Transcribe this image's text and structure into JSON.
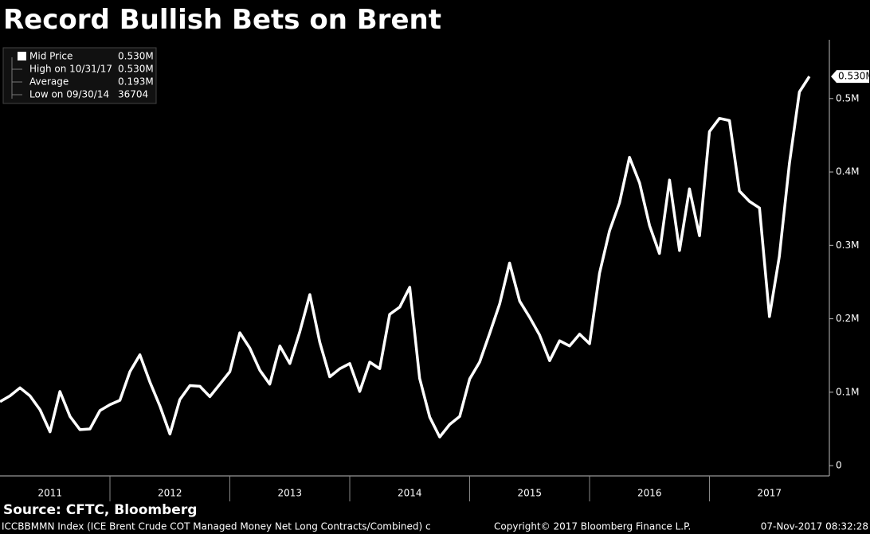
{
  "chart_data": {
    "type": "line",
    "title": "Record Bullish Bets on Brent",
    "source": "Source: CFTC, Bloomberg",
    "footer_left": "ICCBBMMN Index (ICE Brent Crude COT Managed Money Net Long Contracts/Combined) c",
    "footer_center": "Copyright© 2017 Bloomberg Finance L.P.",
    "footer_right": "07-Nov-2017 08:32:28",
    "x": [
      2011.083,
      2011.167,
      2011.25,
      2011.333,
      2011.417,
      2011.5,
      2011.583,
      2011.667,
      2011.75,
      2011.833,
      2011.917,
      2012,
      2012.083,
      2012.167,
      2012.25,
      2012.333,
      2012.417,
      2012.5,
      2012.583,
      2012.667,
      2012.75,
      2012.833,
      2012.917,
      2013,
      2013.083,
      2013.167,
      2013.25,
      2013.333,
      2013.417,
      2013.5,
      2013.583,
      2013.667,
      2013.75,
      2013.833,
      2013.917,
      2014,
      2014.083,
      2014.167,
      2014.25,
      2014.333,
      2014.417,
      2014.5,
      2014.583,
      2014.667,
      2014.75,
      2014.833,
      2014.917,
      2015,
      2015.083,
      2015.167,
      2015.25,
      2015.333,
      2015.417,
      2015.5,
      2015.583,
      2015.667,
      2015.75,
      2015.833,
      2015.917,
      2016,
      2016.083,
      2016.167,
      2016.25,
      2016.333,
      2016.417,
      2016.5,
      2016.583,
      2016.667,
      2016.75,
      2016.833,
      2016.917,
      2017,
      2017.083,
      2017.167,
      2017.25,
      2017.333,
      2017.417,
      2017.5,
      2017.583,
      2017.667,
      2017.75,
      2017.833
    ],
    "series": [
      {
        "name": "Mid Price",
        "color": "#ffffff",
        "values": [
          0.087,
          0.095,
          0.106,
          0.095,
          0.076,
          0.046,
          0.101,
          0.067,
          0.049,
          0.05,
          0.075,
          0.083,
          0.089,
          0.128,
          0.151,
          0.114,
          0.081,
          0.043,
          0.09,
          0.109,
          0.108,
          0.094,
          0.111,
          0.128,
          0.181,
          0.16,
          0.13,
          0.111,
          0.163,
          0.139,
          0.182,
          0.233,
          0.168,
          0.121,
          0.132,
          0.139,
          0.101,
          0.141,
          0.132,
          0.206,
          0.216,
          0.243,
          0.119,
          0.066,
          0.039,
          0.056,
          0.067,
          0.118,
          0.141,
          0.18,
          0.22,
          0.276,
          0.224,
          0.202,
          0.178,
          0.143,
          0.17,
          0.163,
          0.179,
          0.166,
          0.262,
          0.32,
          0.358,
          0.42,
          0.385,
          0.327,
          0.289,
          0.389,
          0.293,
          0.377,
          0.313,
          0.455,
          0.473,
          0.47,
          0.374,
          0.36,
          0.351,
          0.203,
          0.285,
          0.412,
          0.509,
          0.53
        ]
      }
    ],
    "last_label": "0.530M",
    "legend_value": "0.530M",
    "stats": [
      {
        "name": "High on 10/31/17",
        "value": "0.530M"
      },
      {
        "name": "Average",
        "value": "0.193M"
      },
      {
        "name": "Low on 09/30/14",
        "value": "36704"
      }
    ],
    "xlim": [
      2011.083,
      2018
    ],
    "xticks": [
      {
        "value": 2011.5,
        "label": "2011"
      },
      {
        "value": 2012.5,
        "label": "2012"
      },
      {
        "value": 2013.5,
        "label": "2013"
      },
      {
        "value": 2014.5,
        "label": "2014"
      },
      {
        "value": 2015.5,
        "label": "2015"
      },
      {
        "value": 2016.5,
        "label": "2016"
      },
      {
        "value": 2017.5,
        "label": "2017"
      }
    ],
    "ylim": [
      -0.014,
      0.58
    ],
    "yticks": [
      0,
      {
        "value": 0.1,
        "label": "0.1M"
      },
      {
        "value": 0.2,
        "label": "0.2M"
      },
      {
        "value": 0.3,
        "label": "0.3M"
      },
      {
        "value": 0.4,
        "label": "0.4M"
      },
      {
        "value": 0.5,
        "label": "0.5M"
      }
    ]
  }
}
